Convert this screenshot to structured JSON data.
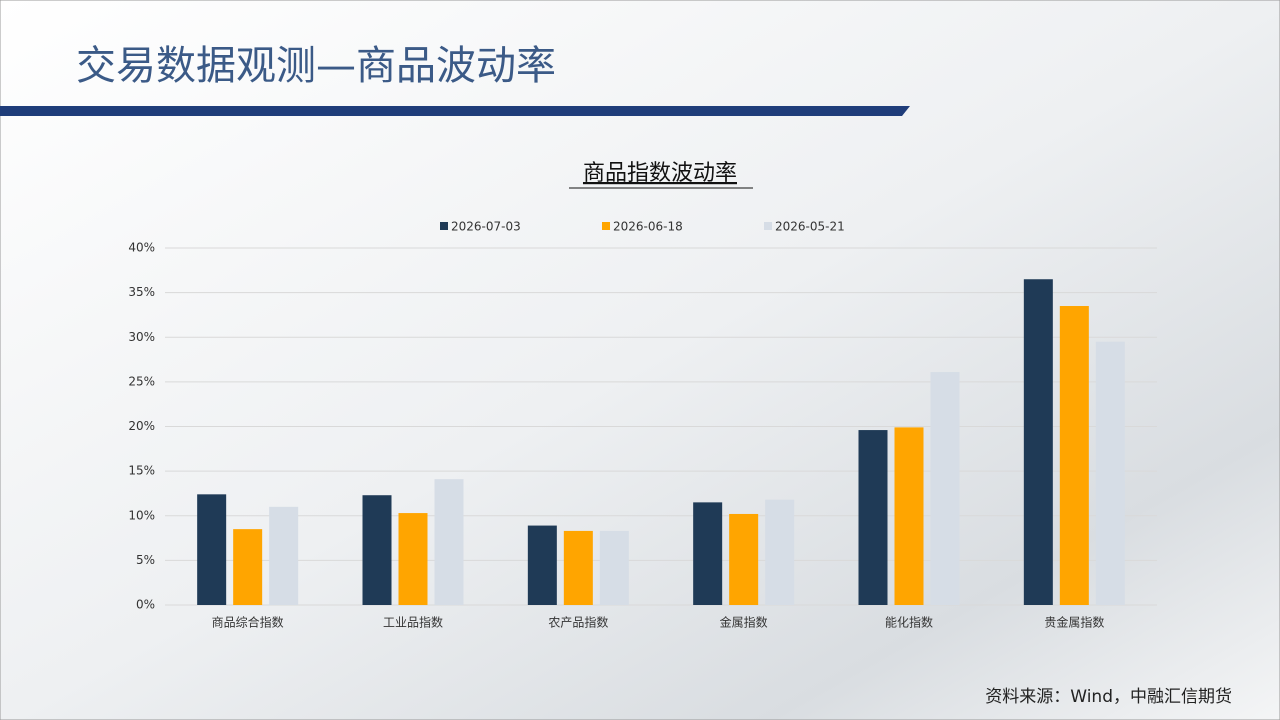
{
  "page_title": "交易数据观测—商品波动率",
  "source": "资料来源：Wind，中融汇信期货",
  "chart_data": {
    "type": "bar",
    "title": "商品指数波动率",
    "categories": [
      "商品综合指数",
      "工业品指数",
      "农产品指数",
      "金属指数",
      "能化指数",
      "贵金属指数"
    ],
    "series": [
      {
        "name": "2026-07-03",
        "color": "#1f3a56",
        "values": [
          12.4,
          12.3,
          8.9,
          11.5,
          19.6,
          36.5
        ]
      },
      {
        "name": "2026-06-18",
        "color": "#ffa500",
        "values": [
          8.5,
          10.3,
          8.3,
          10.2,
          19.9,
          33.5
        ]
      },
      {
        "name": "2026-05-21",
        "color": "#d6dde6",
        "values": [
          11.0,
          14.1,
          8.3,
          11.8,
          26.1,
          29.5
        ]
      }
    ],
    "ylim": [
      0,
      40
    ],
    "yticks": [
      {
        "value": 0,
        "label": "0%"
      },
      {
        "value": 5,
        "label": "5%"
      },
      {
        "value": 10,
        "label": "10%"
      },
      {
        "value": 15,
        "label": "15%"
      },
      {
        "value": 20,
        "label": "20%"
      },
      {
        "value": 25,
        "label": "25%"
      },
      {
        "value": 30,
        "label": "30%"
      },
      {
        "value": 35,
        "label": "35%"
      },
      {
        "value": 40,
        "label": "40%"
      }
    ],
    "grid": true
  }
}
